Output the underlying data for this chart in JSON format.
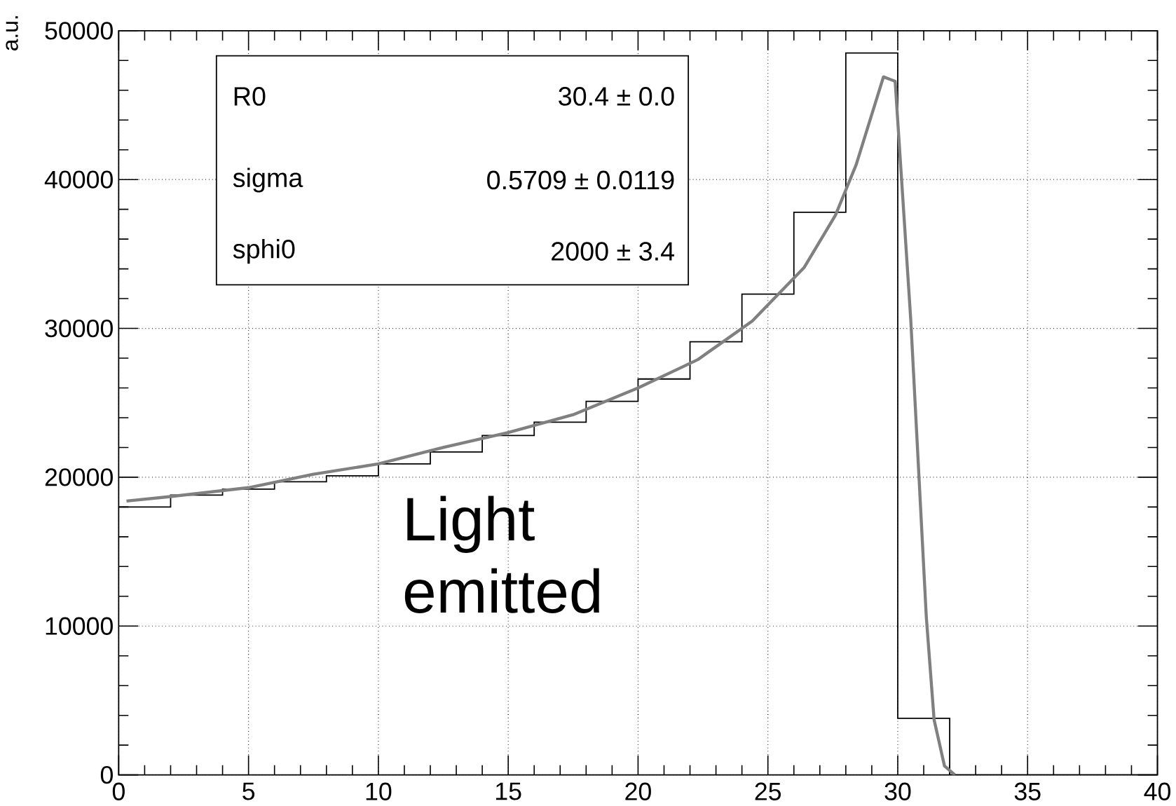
{
  "chart_data": {
    "type": "histogram",
    "ylabel": "a.u.",
    "bins": [
      0,
      2,
      4,
      6,
      8,
      10,
      12,
      14,
      16,
      18,
      20,
      22,
      24,
      26,
      28,
      30,
      32,
      34,
      36,
      38,
      40
    ],
    "values": [
      18000,
      18800,
      19200,
      19700,
      20100,
      20900,
      21700,
      22800,
      23700,
      25100,
      26600,
      29100,
      32300,
      37800,
      48500,
      3800,
      0,
      0,
      0,
      0
    ],
    "color": "#000000",
    "series": [
      {
        "type": "line",
        "color": "#808080",
        "x": [
          0.3,
          2,
          5,
          7.5,
          10,
          12.5,
          15,
          17.5,
          20,
          22.3,
          24.4,
          26.4,
          27.6,
          28.4,
          29.45,
          29.9,
          30.5,
          31.1,
          31.4,
          31.8,
          32.2
        ],
        "values": [
          18400,
          18700,
          19300,
          20200,
          20900,
          22000,
          23000,
          24200,
          26000,
          27900,
          30500,
          34100,
          37600,
          41000,
          46900,
          46600,
          30600,
          10600,
          3700,
          600,
          0
        ]
      }
    ],
    "xlim": [
      0,
      40
    ],
    "ylim": [
      0,
      50000
    ],
    "xticks": [
      0,
      5,
      10,
      15,
      20,
      25,
      30,
      35,
      40
    ],
    "yticks": [
      0,
      10000,
      20000,
      30000,
      40000,
      50000
    ],
    "grid": true,
    "annotations": [
      "R0",
      "30.4 ± 0.0",
      "sigma",
      "0.5709 ± 0.0119",
      "sphi0",
      "2000 ± 3.4",
      "Light emitted"
    ]
  }
}
